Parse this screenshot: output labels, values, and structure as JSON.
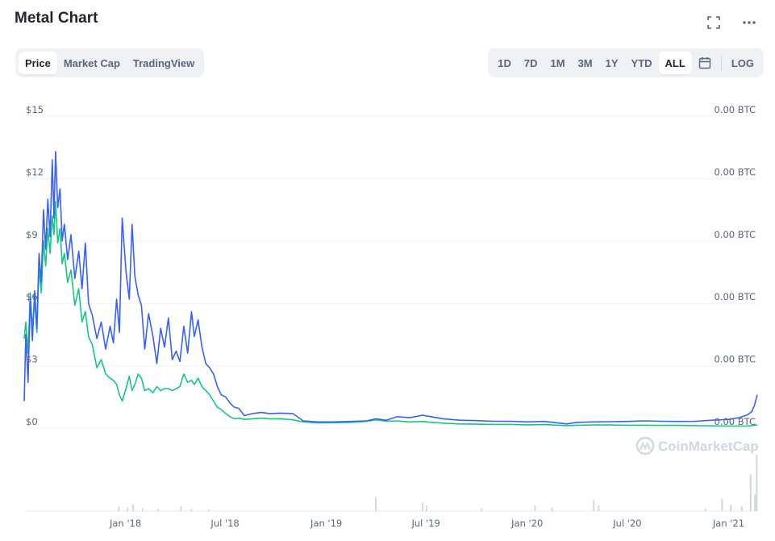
{
  "header": {
    "title": "Metal Chart"
  },
  "tabs": [
    {
      "label": "Price",
      "active": true
    },
    {
      "label": "Market Cap",
      "active": false
    },
    {
      "label": "TradingView",
      "active": false
    }
  ],
  "ranges": [
    {
      "label": "1D",
      "active": false
    },
    {
      "label": "7D",
      "active": false
    },
    {
      "label": "1M",
      "active": false
    },
    {
      "label": "3M",
      "active": false
    },
    {
      "label": "1Y",
      "active": false
    },
    {
      "label": "YTD",
      "active": false
    },
    {
      "label": "ALL",
      "active": true
    }
  ],
  "toolbar": {
    "log_label": "LOG",
    "icons": [
      "expand-icon",
      "more-icon",
      "calendar-icon"
    ]
  },
  "watermark": "CoinMarketCap",
  "colors": {
    "usd_line": "#3861fb",
    "btc_line": "#16c784",
    "grid": "#eff2f5",
    "volume": "#cfd6e4"
  },
  "chart_data": {
    "type": "line",
    "x_tick_labels": [
      "Jan '18",
      "Jul '18",
      "Jan '19",
      "Jul '19",
      "Jan '20",
      "Jul '20",
      "Jan '21"
    ],
    "y_tick_labels_left": [
      "$0",
      "$3",
      "$6",
      "$9",
      "$12",
      "$15"
    ],
    "y_tick_values_left": [
      0,
      3,
      6,
      9,
      12,
      15
    ],
    "y_tick_labels_right": [
      "0.00 BTC",
      "0.00 BTC",
      "0.00 BTC",
      "0.00 BTC",
      "0.00 BTC",
      "0.00 BTC"
    ],
    "ylim_left": [
      0,
      15
    ],
    "xlim": [
      "2017-07-01",
      "2021-02-22"
    ],
    "grid": true,
    "series": [
      {
        "axis": "left",
        "points": [
          [
            "2017-07-01",
            1.3
          ],
          [
            "2017-07-04",
            4.5
          ],
          [
            "2017-07-08",
            2.2
          ],
          [
            "2017-07-12",
            6.3
          ],
          [
            "2017-07-16",
            4.2
          ],
          [
            "2017-07-20",
            6.6
          ],
          [
            "2017-07-24",
            4.8
          ],
          [
            "2017-07-28",
            8.4
          ],
          [
            "2017-08-01",
            7.0
          ],
          [
            "2017-08-05",
            10.5
          ],
          [
            "2017-08-09",
            8.6
          ],
          [
            "2017-08-13",
            11.0
          ],
          [
            "2017-08-17",
            9.2
          ],
          [
            "2017-08-21",
            12.9
          ],
          [
            "2017-08-24",
            10.1
          ],
          [
            "2017-08-27",
            13.3
          ],
          [
            "2017-08-31",
            10.6
          ],
          [
            "2017-09-04",
            11.5
          ],
          [
            "2017-09-08",
            9.0
          ],
          [
            "2017-09-12",
            9.8
          ],
          [
            "2017-09-18",
            8.1
          ],
          [
            "2017-09-24",
            9.3
          ],
          [
            "2017-10-01",
            7.2
          ],
          [
            "2017-10-08",
            8.5
          ],
          [
            "2017-10-14",
            6.7
          ],
          [
            "2017-10-20",
            8.9
          ],
          [
            "2017-10-26",
            6.0
          ],
          [
            "2017-11-02",
            5.4
          ],
          [
            "2017-11-10",
            4.3
          ],
          [
            "2017-11-18",
            5.1
          ],
          [
            "2017-11-26",
            3.8
          ],
          [
            "2017-12-04",
            4.9
          ],
          [
            "2017-12-10",
            4.1
          ],
          [
            "2017-12-16",
            6.2
          ],
          [
            "2017-12-21",
            4.6
          ],
          [
            "2017-12-26",
            10.1
          ],
          [
            "2018-01-02",
            7.5
          ],
          [
            "2018-01-08",
            6.2
          ],
          [
            "2018-01-13",
            9.8
          ],
          [
            "2018-01-18",
            7.3
          ],
          [
            "2018-01-24",
            6.4
          ],
          [
            "2018-01-30",
            5.9
          ],
          [
            "2018-02-05",
            3.8
          ],
          [
            "2018-02-12",
            5.5
          ],
          [
            "2018-02-20",
            4.4
          ],
          [
            "2018-02-27",
            3.1
          ],
          [
            "2018-03-06",
            4.8
          ],
          [
            "2018-03-13",
            3.9
          ],
          [
            "2018-03-20",
            5.3
          ],
          [
            "2018-03-27",
            3.3
          ],
          [
            "2018-04-03",
            3.7
          ],
          [
            "2018-04-10",
            3.2
          ],
          [
            "2018-04-17",
            4.9
          ],
          [
            "2018-04-24",
            3.6
          ],
          [
            "2018-05-01",
            5.6
          ],
          [
            "2018-05-06",
            4.4
          ],
          [
            "2018-05-13",
            5.2
          ],
          [
            "2018-05-20",
            3.9
          ],
          [
            "2018-05-27",
            3.1
          ],
          [
            "2018-06-03",
            2.9
          ],
          [
            "2018-06-10",
            2.6
          ],
          [
            "2018-06-17",
            2.0
          ],
          [
            "2018-06-24",
            1.6
          ],
          [
            "2018-07-02",
            1.5
          ],
          [
            "2018-07-10",
            1.2
          ],
          [
            "2018-07-18",
            1.0
          ],
          [
            "2018-07-26",
            0.95
          ],
          [
            "2018-08-05",
            0.6
          ],
          [
            "2018-08-20",
            0.7
          ],
          [
            "2018-09-05",
            0.75
          ],
          [
            "2018-09-20",
            0.7
          ],
          [
            "2018-10-10",
            0.72
          ],
          [
            "2018-11-01",
            0.7
          ],
          [
            "2018-11-20",
            0.35
          ],
          [
            "2018-12-15",
            0.3
          ],
          [
            "2019-01-15",
            0.3
          ],
          [
            "2019-02-15",
            0.32
          ],
          [
            "2019-03-15",
            0.35
          ],
          [
            "2019-04-01",
            0.45
          ],
          [
            "2019-04-20",
            0.38
          ],
          [
            "2019-05-10",
            0.55
          ],
          [
            "2019-06-01",
            0.5
          ],
          [
            "2019-06-25",
            0.62
          ],
          [
            "2019-07-10",
            0.55
          ],
          [
            "2019-08-01",
            0.45
          ],
          [
            "2019-09-01",
            0.38
          ],
          [
            "2019-10-01",
            0.36
          ],
          [
            "2019-11-01",
            0.33
          ],
          [
            "2019-12-01",
            0.33
          ],
          [
            "2020-01-01",
            0.3
          ],
          [
            "2020-02-01",
            0.32
          ],
          [
            "2020-03-13",
            0.2
          ],
          [
            "2020-04-01",
            0.28
          ],
          [
            "2020-05-01",
            0.3
          ],
          [
            "2020-06-01",
            0.31
          ],
          [
            "2020-07-01",
            0.32
          ],
          [
            "2020-08-01",
            0.35
          ],
          [
            "2020-09-01",
            0.33
          ],
          [
            "2020-10-01",
            0.32
          ],
          [
            "2020-11-01",
            0.33
          ],
          [
            "2020-12-01",
            0.38
          ],
          [
            "2021-01-01",
            0.42
          ],
          [
            "2021-01-20",
            0.5
          ],
          [
            "2021-02-05",
            0.65
          ],
          [
            "2021-02-12",
            0.8
          ],
          [
            "2021-02-17",
            1.1
          ],
          [
            "2021-02-22",
            1.6
          ]
        ]
      },
      {
        "axis": "right",
        "points": [
          [
            "2017-07-01",
            4.3
          ],
          [
            "2017-07-04",
            5.1
          ],
          [
            "2017-07-08",
            3.6
          ],
          [
            "2017-07-12",
            6.5
          ],
          [
            "2017-07-16",
            4.8
          ],
          [
            "2017-07-20",
            6.2
          ],
          [
            "2017-07-24",
            4.6
          ],
          [
            "2017-07-28",
            7.7
          ],
          [
            "2017-08-01",
            6.5
          ],
          [
            "2017-08-05",
            9.0
          ],
          [
            "2017-08-09",
            7.8
          ],
          [
            "2017-08-13",
            9.6
          ],
          [
            "2017-08-17",
            8.4
          ],
          [
            "2017-08-21",
            10.2
          ],
          [
            "2017-08-24",
            9.3
          ],
          [
            "2017-08-27",
            10.9
          ],
          [
            "2017-08-31",
            8.9
          ],
          [
            "2017-09-04",
            9.6
          ],
          [
            "2017-09-08",
            7.9
          ],
          [
            "2017-09-12",
            8.4
          ],
          [
            "2017-09-18",
            7.0
          ],
          [
            "2017-09-24",
            7.6
          ],
          [
            "2017-10-01",
            5.9
          ],
          [
            "2017-10-08",
            6.7
          ],
          [
            "2017-10-14",
            5.1
          ],
          [
            "2017-10-20",
            5.6
          ],
          [
            "2017-10-26",
            4.4
          ],
          [
            "2017-11-02",
            4.0
          ],
          [
            "2017-11-10",
            2.9
          ],
          [
            "2017-11-18",
            3.3
          ],
          [
            "2017-11-26",
            2.6
          ],
          [
            "2017-12-04",
            2.4
          ],
          [
            "2017-12-10",
            2.3
          ],
          [
            "2017-12-16",
            2.1
          ],
          [
            "2017-12-21",
            1.6
          ],
          [
            "2017-12-26",
            1.3
          ],
          [
            "2018-01-02",
            1.9
          ],
          [
            "2018-01-08",
            2.5
          ],
          [
            "2018-01-13",
            1.8
          ],
          [
            "2018-01-18",
            2.1
          ],
          [
            "2018-01-24",
            2.6
          ],
          [
            "2018-01-30",
            2.4
          ],
          [
            "2018-02-05",
            1.8
          ],
          [
            "2018-02-12",
            1.9
          ],
          [
            "2018-02-20",
            1.7
          ],
          [
            "2018-02-27",
            2.0
          ],
          [
            "2018-03-06",
            1.8
          ],
          [
            "2018-03-13",
            1.9
          ],
          [
            "2018-03-20",
            1.9
          ],
          [
            "2018-03-27",
            1.8
          ],
          [
            "2018-04-03",
            1.9
          ],
          [
            "2018-04-10",
            2.0
          ],
          [
            "2018-04-17",
            2.6
          ],
          [
            "2018-04-24",
            2.2
          ],
          [
            "2018-05-01",
            2.3
          ],
          [
            "2018-05-06",
            2.1
          ],
          [
            "2018-05-13",
            2.4
          ],
          [
            "2018-05-20",
            2.0
          ],
          [
            "2018-05-27",
            1.8
          ],
          [
            "2018-06-03",
            1.6
          ],
          [
            "2018-06-10",
            1.3
          ],
          [
            "2018-06-17",
            1.0
          ],
          [
            "2018-06-24",
            0.9
          ],
          [
            "2018-07-02",
            0.7
          ],
          [
            "2018-07-10",
            0.55
          ],
          [
            "2018-07-18",
            0.45
          ],
          [
            "2018-07-26",
            0.48
          ],
          [
            "2018-08-05",
            0.42
          ],
          [
            "2018-08-20",
            0.45
          ],
          [
            "2018-09-05",
            0.48
          ],
          [
            "2018-09-20",
            0.44
          ],
          [
            "2018-10-10",
            0.45
          ],
          [
            "2018-11-01",
            0.4
          ],
          [
            "2018-11-20",
            0.3
          ],
          [
            "2018-12-15",
            0.25
          ],
          [
            "2019-01-15",
            0.26
          ],
          [
            "2019-02-15",
            0.28
          ],
          [
            "2019-03-15",
            0.32
          ],
          [
            "2019-04-01",
            0.4
          ],
          [
            "2019-04-20",
            0.33
          ],
          [
            "2019-05-10",
            0.35
          ],
          [
            "2019-06-01",
            0.3
          ],
          [
            "2019-06-25",
            0.32
          ],
          [
            "2019-07-10",
            0.28
          ],
          [
            "2019-08-01",
            0.24
          ],
          [
            "2019-09-01",
            0.2
          ],
          [
            "2019-10-01",
            0.19
          ],
          [
            "2019-11-01",
            0.18
          ],
          [
            "2019-12-01",
            0.18
          ],
          [
            "2020-01-01",
            0.16
          ],
          [
            "2020-02-01",
            0.17
          ],
          [
            "2020-03-13",
            0.12
          ],
          [
            "2020-04-01",
            0.14
          ],
          [
            "2020-05-01",
            0.15
          ],
          [
            "2020-06-01",
            0.15
          ],
          [
            "2020-07-01",
            0.14
          ],
          [
            "2020-08-01",
            0.14
          ],
          [
            "2020-09-01",
            0.13
          ],
          [
            "2020-10-01",
            0.13
          ],
          [
            "2020-11-01",
            0.12
          ],
          [
            "2020-12-01",
            0.11
          ],
          [
            "2021-01-01",
            0.1
          ],
          [
            "2021-01-20",
            0.1
          ],
          [
            "2021-02-05",
            0.1
          ],
          [
            "2021-02-12",
            0.12
          ],
          [
            "2021-02-17",
            0.14
          ],
          [
            "2021-02-22",
            0.16
          ]
        ]
      }
    ],
    "volume_bars": [
      [
        "2017-12-20",
        0.08
      ],
      [
        "2018-01-05",
        0.06
      ],
      [
        "2018-01-15",
        0.12
      ],
      [
        "2018-02-01",
        0.05
      ],
      [
        "2018-03-01",
        0.04
      ],
      [
        "2018-04-12",
        0.08
      ],
      [
        "2018-05-01",
        0.04
      ],
      [
        "2018-06-01",
        0.03
      ],
      [
        "2019-04-01",
        0.25
      ],
      [
        "2019-06-25",
        0.15
      ],
      [
        "2019-07-02",
        0.1
      ],
      [
        "2019-10-10",
        0.05
      ],
      [
        "2020-01-15",
        0.1
      ],
      [
        "2020-02-15",
        0.06
      ],
      [
        "2020-05-01",
        0.2
      ],
      [
        "2020-05-10",
        0.1
      ],
      [
        "2020-11-20",
        0.04
      ],
      [
        "2020-12-20",
        0.22
      ],
      [
        "2021-01-05",
        0.12
      ],
      [
        "2021-01-25",
        0.08
      ],
      [
        "2021-02-10",
        0.65
      ],
      [
        "2021-02-18",
        0.3
      ],
      [
        "2021-02-21",
        1.0
      ]
    ]
  }
}
